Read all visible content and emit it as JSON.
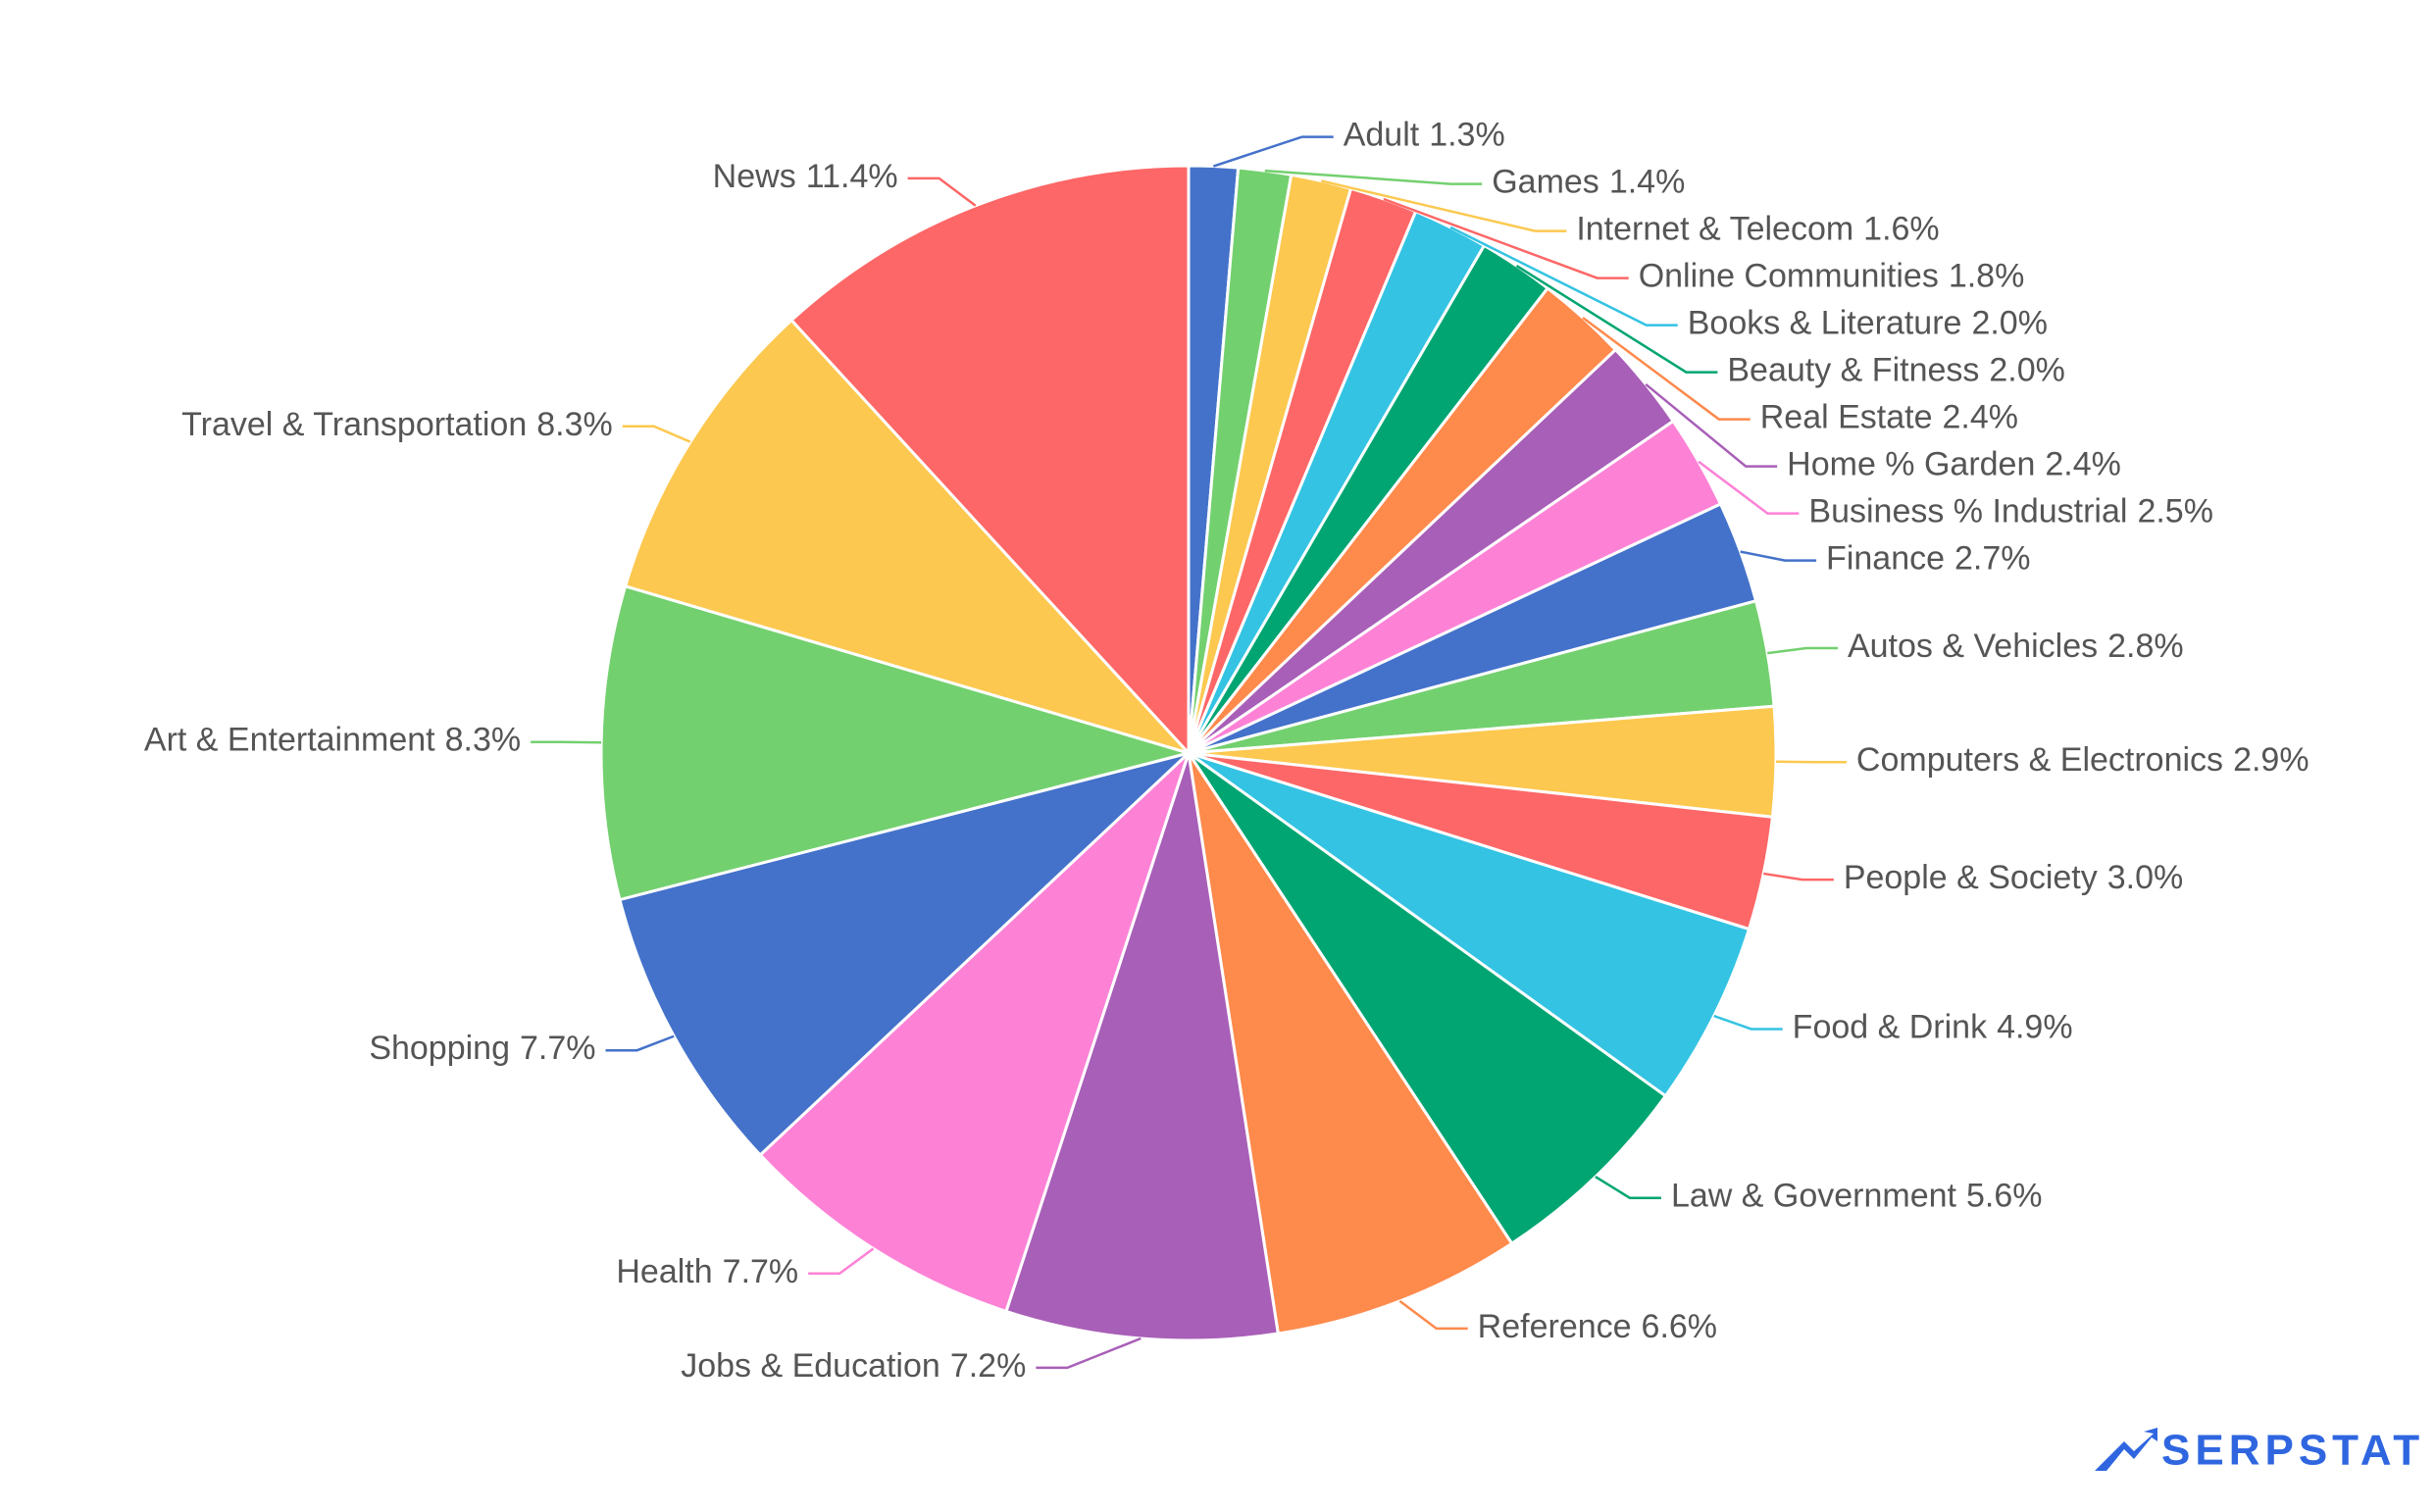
{
  "chart_data": {
    "type": "pie",
    "categories": [
      "Adult",
      "Games",
      "Internet & Telecom",
      "Online Communities",
      "Books & Literature",
      "Beauty & Fitness",
      "Real Estate",
      "Home % Garden",
      "Business % Industrial",
      "Finance",
      "Autos & Vehicles",
      "Computers & Electronics",
      "People & Society",
      "Food & Drink",
      "Law & Government",
      "Reference",
      "Jobs & Education",
      "Health",
      "Shopping",
      "Art & Entertainment",
      "Travel & Transportation",
      "News"
    ],
    "values": [
      1.3,
      1.4,
      1.6,
      1.8,
      2.0,
      2.0,
      2.4,
      2.4,
      2.5,
      2.7,
      2.8,
      2.9,
      3.0,
      4.9,
      5.6,
      6.6,
      7.2,
      7.7,
      7.7,
      8.3,
      8.3,
      11.4
    ],
    "value_labels": [
      "1.3%",
      "1.4%",
      "1.6%",
      "1.8%",
      "2.0%",
      "2.0%",
      "2.4%",
      "2.4%",
      "2.5%",
      "2.7%",
      "2.8%",
      "2.9%",
      "3.0%",
      "4.9%",
      "5.6%",
      "6.6%",
      "7.2%",
      "7.7%",
      "7.7%",
      "8.3%",
      "8.3%",
      "11.4%"
    ],
    "colors": [
      "#4472ca",
      "#73d06f",
      "#fcc84f",
      "#fd6767",
      "#34c3e3",
      "#00a572",
      "#fe8a4c",
      "#a85fb8",
      "#fd82d6"
    ]
  },
  "brand": "SERPSTAT"
}
